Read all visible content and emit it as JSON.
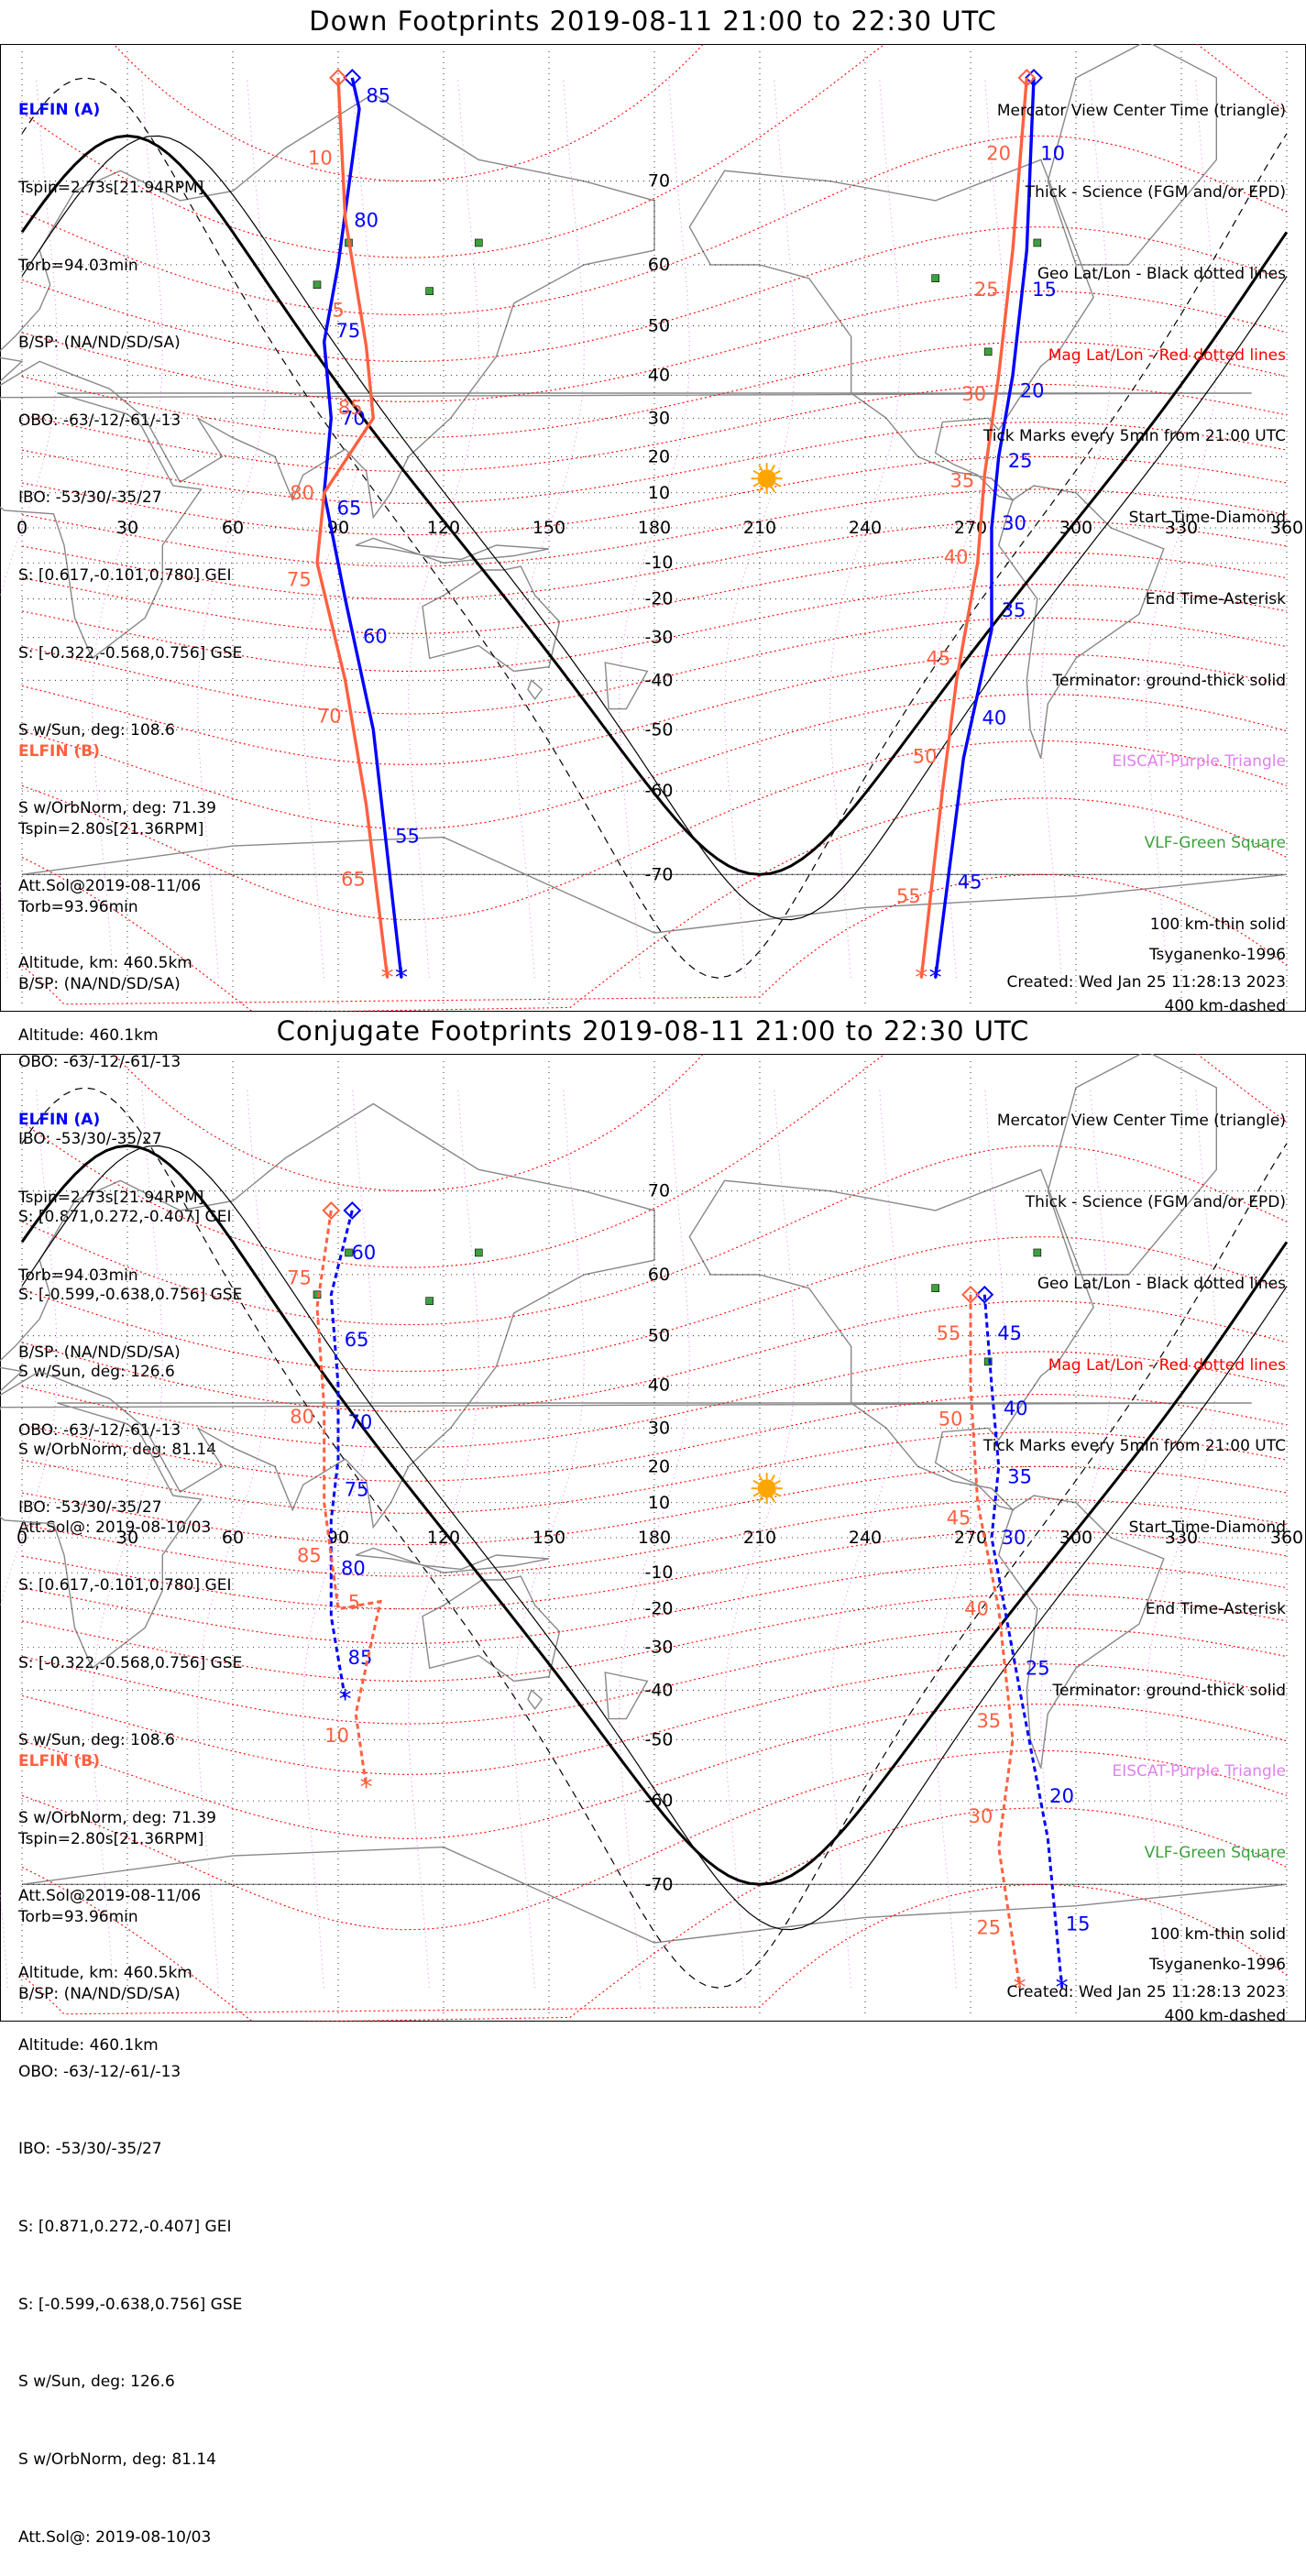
{
  "colors": {
    "craft_a": "#0000ff",
    "craft_b": "#ff6040",
    "geo_grid": "#000000",
    "mag_grid": "#ff0000",
    "elfin_station": "#e080f0",
    "vlf_station": "#3ca03c",
    "sun": "#ffa500"
  },
  "panels": [
    {
      "title": "Down Footprints 2019-08-11 21:00 to 22:30 UTC",
      "elfin_a": {
        "name": "ELFIN (A)",
        "lines": [
          "Tspin=2.73s[21.94RPM]",
          "Torb=94.03min",
          "B/SP: (NA/ND/SD/SA)",
          "OBO: -63/-12/-61/-13",
          "IBO: -53/30/-35/27",
          "S: [0.617,-0.101,0.780] GEI",
          "S: [-0.322,-0.568,0.756] GSE",
          "S w/Sun, deg: 108.6",
          "S w/OrbNorm, deg: 71.39",
          "Att.Sol@2019-08-11/06",
          "Altitude, km: 460.5km"
        ]
      },
      "elfin_b": {
        "name": "ELFIN (B)",
        "lines": [
          "Tspin=2.80s[21.36RPM]",
          "Torb=93.96min",
          "B/SP: (NA/ND/SD/SA)",
          "OBO: -63/-12/-61/-13",
          "IBO: -53/30/-35/27",
          "S: [0.871,0.272,-0.407] GEI",
          "S: [-0.599,-0.638,0.756] GSE",
          "S w/Sun, deg: 126.6",
          "S w/OrbNorm, deg: 81.14",
          "Att.Sol@: 2019-08-10/03",
          "Altitude: 460.1km"
        ]
      },
      "legend": [
        "Mercator View Center Time (triangle)",
        "Thick - Science (FGM and/or EPD)",
        "Geo Lat/Lon - Black dotted lines",
        "Mag Lat/Lon - Red dotted lines",
        "Tick Marks every 5min from 21:00 UTC",
        "Start Time-Diamond",
        "End Time-Asterisk",
        "Terminator: ground-thick solid",
        "EISCAT-Purple Triangle",
        "VLF-Green Square",
        "100 km-thin solid",
        "400 km-dashed"
      ],
      "model": "Tsyganenko-1996",
      "created": "Created: Wed Jan 25 11:28:13 2023",
      "tracks": {
        "a_west": {
          "ticks": [
            "85",
            "80",
            "75",
            "70",
            "65",
            "60",
            "55"
          ]
        },
        "b_west": {
          "ticks": [
            "10",
            "5",
            "85",
            "80",
            "75",
            "70",
            "65"
          ]
        },
        "b_east": {
          "ticks": [
            "20",
            "25",
            "30",
            "35",
            "40",
            "45",
            "50",
            "55"
          ]
        },
        "a_east": {
          "ticks": [
            "10",
            "15",
            "20",
            "25",
            "30",
            "35",
            "40",
            "45"
          ]
        }
      }
    },
    {
      "title": "Conjugate Footprints 2019-08-11 21:00 to 22:30 UTC",
      "elfin_a": {
        "name": "ELFIN (A)",
        "lines": [
          "Tspin=2.73s[21.94RPM]",
          "Torb=94.03min",
          "B/SP: (NA/ND/SD/SA)",
          "OBO: -63/-12/-61/-13",
          "IBO: -53/30/-35/27",
          "S: [0.617,-0.101,0.780] GEI",
          "S: [-0.322,-0.568,0.756] GSE",
          "S w/Sun, deg: 108.6",
          "S w/OrbNorm, deg: 71.39",
          "Att.Sol@2019-08-11/06",
          "Altitude, km: 460.5km"
        ]
      },
      "elfin_b": {
        "name": "ELFIN (B)",
        "lines": [
          "Tspin=2.80s[21.36RPM]",
          "Torb=93.96min",
          "B/SP: (NA/ND/SD/SA)",
          "OBO: -63/-12/-61/-13",
          "IBO: -53/30/-35/27",
          "S: [0.871,0.272,-0.407] GEI",
          "S: [-0.599,-0.638,0.756] GSE",
          "S w/Sun, deg: 126.6",
          "S w/OrbNorm, deg: 81.14",
          "Att.Sol@: 2019-08-10/03",
          "Altitude: 460.1km"
        ]
      },
      "legend": [
        "Mercator View Center Time (triangle)",
        "Thick - Science (FGM and/or EPD)",
        "Geo Lat/Lon - Black dotted lines",
        "Mag Lat/Lon - Red dotted lines",
        "Tick Marks every 5min from 21:00 UTC",
        "Start Time-Diamond",
        "End Time-Asterisk",
        "Terminator: ground-thick solid",
        "EISCAT-Purple Triangle",
        "VLF-Green Square",
        "100 km-thin solid",
        "400 km-dashed"
      ],
      "model": "Tsyganenko-1996",
      "created": "Created: Wed Jan 25 11:28:13 2023",
      "tracks": {
        "a_west": {
          "ticks": [
            "60",
            "65",
            "70",
            "75",
            "80",
            "85"
          ]
        },
        "b_west": {
          "ticks": [
            "75",
            "80",
            "85",
            "5",
            "10"
          ]
        },
        "b_east": {
          "ticks": [
            "55",
            "50",
            "45",
            "40",
            "35",
            "30",
            "25"
          ]
        },
        "a_east": {
          "ticks": [
            "45",
            "40",
            "35",
            "30",
            "25",
            "20",
            "15"
          ]
        }
      }
    }
  ],
  "lon_labels": [
    "0",
    "30",
    "60",
    "90",
    "120",
    "150",
    "180",
    "210",
    "240",
    "270",
    "300",
    "330",
    "360"
  ],
  "lat_labels_north": [
    "70",
    "60",
    "50",
    "40",
    "30",
    "20",
    "10"
  ],
  "lat_labels_south": [
    "-10",
    "-20",
    "-30",
    "-40",
    "-50",
    "-60",
    "-70"
  ]
}
